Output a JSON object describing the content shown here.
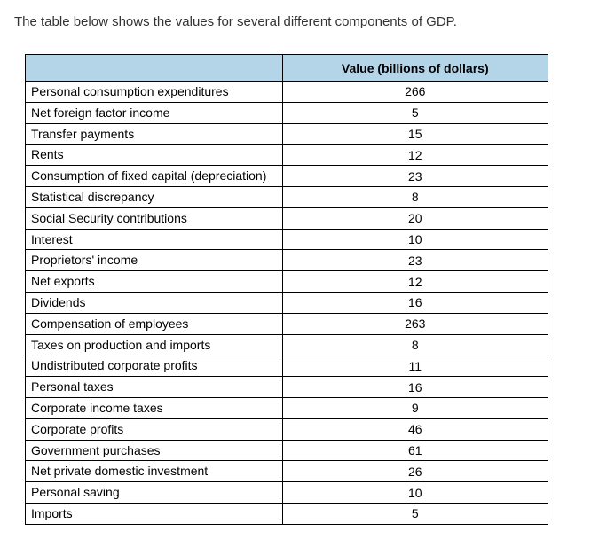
{
  "intro": "The table below shows the values for several different components of GDP.",
  "table": {
    "columns": [
      "",
      "Value (billions of dollars)"
    ],
    "header_bg": "#b4d5e8",
    "border_color": "#000000",
    "rows": [
      {
        "label": "Personal consumption expenditures",
        "value": "266"
      },
      {
        "label": "Net foreign factor income",
        "value": "5"
      },
      {
        "label": "Transfer payments",
        "value": "15"
      },
      {
        "label": "Rents",
        "value": "12"
      },
      {
        "label": "Consumption of fixed capital (depreciation)",
        "value": "23"
      },
      {
        "label": "Statistical discrepancy",
        "value": "8"
      },
      {
        "label": "Social Security contributions",
        "value": "20"
      },
      {
        "label": "Interest",
        "value": "10"
      },
      {
        "label": "Proprietors' income",
        "value": "23"
      },
      {
        "label": "Net exports",
        "value": "12"
      },
      {
        "label": "Dividends",
        "value": "16"
      },
      {
        "label": "Compensation of employees",
        "value": "263"
      },
      {
        "label": "Taxes on production and imports",
        "value": "8"
      },
      {
        "label": "Undistributed corporate profits",
        "value": "11"
      },
      {
        "label": "Personal taxes",
        "value": "16"
      },
      {
        "label": "Corporate income taxes",
        "value": "9"
      },
      {
        "label": "Corporate profits",
        "value": "46"
      },
      {
        "label": "Government purchases",
        "value": "61"
      },
      {
        "label": "Net private domestic investment",
        "value": "26"
      },
      {
        "label": "Personal saving",
        "value": "10"
      },
      {
        "label": "Imports",
        "value": "5"
      }
    ]
  }
}
